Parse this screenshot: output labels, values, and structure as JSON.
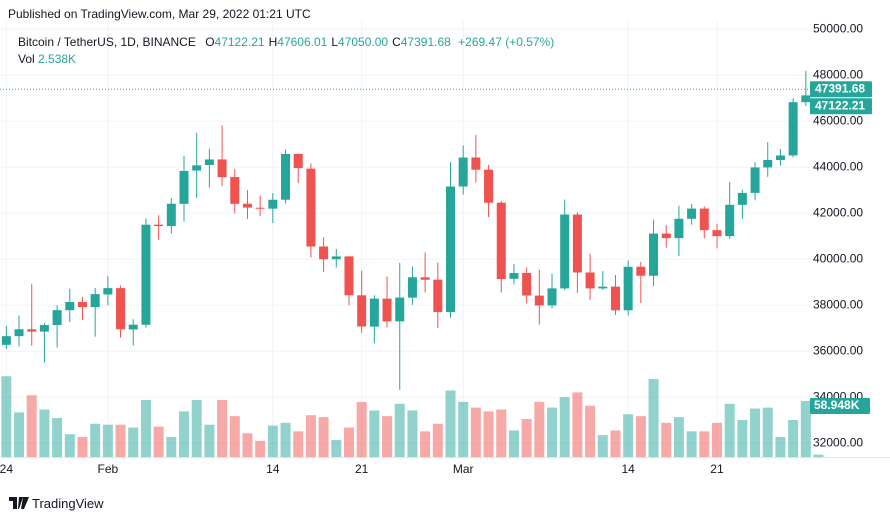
{
  "header": {
    "published": "Published on TradingView.com, Mar 29, 2022 01:21 UTC"
  },
  "legend": {
    "symbol": "Bitcoin / TetherUS, 1D, BINANCE",
    "items": [
      {
        "key": "O",
        "text": "47122.21"
      },
      {
        "key": "H",
        "text": "47606.01"
      },
      {
        "key": "L",
        "text": "47050.00"
      },
      {
        "key": "C",
        "text": "47391.68"
      }
    ],
    "change": "+269.47 (+0.57%)",
    "volume_key": "Vol",
    "volume_text": "2.538K"
  },
  "footer": {
    "brand": "TradingView"
  },
  "chart_data": {
    "type": "candlestick",
    "up_color": "#26a69a",
    "down_color": "#ef5350",
    "grid": true,
    "categories": [
      "Jan 24",
      "Jan 25",
      "Jan 26",
      "Jan 27",
      "Jan 28",
      "Jan 29",
      "Jan 30",
      "Jan 31",
      "Feb 1",
      "Feb 2",
      "Feb 3",
      "Feb 4",
      "Feb 5",
      "Feb 6",
      "Feb 7",
      "Feb 8",
      "Feb 9",
      "Feb 10",
      "Feb 11",
      "Feb 12",
      "Feb 13",
      "Feb 14",
      "Feb 15",
      "Feb 16",
      "Feb 17",
      "Feb 18",
      "Feb 19",
      "Feb 20",
      "Feb 21",
      "Feb 22",
      "Feb 23",
      "Feb 24",
      "Feb 25",
      "Feb 26",
      "Feb 27",
      "Feb 28",
      "Mar 1",
      "Mar 2",
      "Mar 3",
      "Mar 4",
      "Mar 5",
      "Mar 6",
      "Mar 7",
      "Mar 8",
      "Mar 9",
      "Mar 10",
      "Mar 11",
      "Mar 12",
      "Mar 13",
      "Mar 14",
      "Mar 15",
      "Mar 16",
      "Mar 17",
      "Mar 18",
      "Mar 19",
      "Mar 20",
      "Mar 21",
      "Mar 22",
      "Mar 23",
      "Mar 24",
      "Mar 25",
      "Mar 26",
      "Mar 27",
      "Mar 28",
      "Mar 29"
    ],
    "open": [
      36276,
      36655,
      36954,
      36852,
      37138,
      37784,
      38138,
      37917,
      38467,
      38743,
      36944,
      37149,
      41501,
      41441,
      42406,
      43854,
      44096,
      44338,
      43571,
      42412,
      42237,
      42198,
      42586,
      44579,
      43937,
      40553,
      40000,
      40122,
      38430,
      37068,
      38285,
      37297,
      38328,
      39213,
      39111,
      37700,
      43161,
      44422,
      43892,
      42458,
      39148,
      39404,
      38418,
      37989,
      38729,
      41941,
      39422,
      38729,
      38807,
      37778,
      39671,
      39280,
      41115,
      40917,
      41758,
      42201,
      41262,
      41002,
      42364,
      42882,
      43991,
      44313,
      44511,
      46827,
      47122.21
    ],
    "high": [
      37100,
      37550,
      38919,
      37234,
      38000,
      38720,
      38360,
      38744,
      39265,
      38855,
      37387,
      41772,
      41913,
      42656,
      44500,
      45492,
      44800,
      45821,
      43920,
      43000,
      42760,
      42876,
      44770,
      44582,
      44164,
      40959,
      40444,
      40125,
      39494,
      38429,
      39249,
      39843,
      39683,
      40300,
      39855,
      44225,
      44949,
      45400,
      44101,
      42527,
      39794,
      39640,
      39547,
      39362,
      42594,
      42039,
      40236,
      39486,
      39310,
      39947,
      39887,
      41718,
      41478,
      42325,
      42400,
      42296,
      41544,
      43361,
      43025,
      44220,
      45094,
      44792,
      46999,
      48189,
      47606.01
    ],
    "low": [
      36100,
      36200,
      36234,
      35507,
      36155,
      37268,
      37351,
      36632,
      38000,
      36586,
      36250,
      37026,
      40843,
      41116,
      41645,
      42666,
      43117,
      43187,
      42000,
      41748,
      41870,
      41570,
      42427,
      43311,
      40073,
      39450,
      39639,
      38000,
      36800,
      36350,
      37036,
      34322,
      38014,
      38557,
      37000,
      37450,
      42809,
      43334,
      41832,
      38550,
      38900,
      38088,
      37155,
      37867,
      38656,
      38539,
      38224,
      38660,
      37578,
      37555,
      38098,
      38828,
      40500,
      40135,
      41500,
      40911,
      40467,
      40875,
      41751,
      42560,
      43579,
      44071,
      44421,
      46663,
      47050
    ],
    "close": [
      36654,
      36954,
      36852,
      37138,
      37784,
      38138,
      37917,
      38483,
      38743,
      36952,
      37154,
      41500,
      41441,
      42412,
      43841,
      44081,
      44338,
      43565,
      42407,
      42244,
      42197,
      42586,
      44575,
      43961,
      40552,
      40000,
      40121,
      38431,
      37075,
      38287,
      37296,
      38332,
      39214,
      39106,
      37699,
      43160,
      44421,
      43892,
      42454,
      39137,
      39398,
      38420,
      37988,
      38731,
      41941,
      39422,
      38730,
      38807,
      37777,
      39671,
      39280,
      41114,
      40917,
      41757,
      42201,
      41262,
      41002,
      42364,
      42882,
      43991,
      44313,
      44511,
      46827,
      47122.21,
      47391.68
    ],
    "volume": [
      85000,
      47000,
      65000,
      50000,
      41000,
      24000,
      21000,
      35000,
      34000,
      34000,
      31000,
      60000,
      32000,
      21000,
      48000,
      60000,
      34000,
      60000,
      43000,
      25000,
      17000,
      33000,
      36000,
      27000,
      44000,
      42000,
      18000,
      31000,
      58000,
      49000,
      43000,
      56000,
      49000,
      27000,
      35000,
      70000,
      58000,
      52000,
      48000,
      50000,
      28000,
      40000,
      58000,
      52000,
      63000,
      68000,
      54000,
      23000,
      28000,
      45000,
      43000,
      82000,
      36000,
      42000,
      27000,
      27000,
      36000,
      56000,
      39000,
      51000,
      52000,
      21000,
      39000,
      58948,
      2538
    ],
    "volume_value_labels": [
      null,
      null,
      null,
      null,
      null,
      null,
      null,
      null,
      null,
      null,
      null,
      null,
      null,
      null,
      null,
      null,
      null,
      null,
      null,
      null,
      null,
      null,
      null,
      null,
      null,
      null,
      null,
      null,
      null,
      null,
      null,
      null,
      null,
      null,
      null,
      null,
      null,
      null,
      null,
      null,
      null,
      null,
      null,
      null,
      null,
      null,
      null,
      null,
      null,
      null,
      null,
      null,
      null,
      null,
      null,
      null,
      null,
      null,
      null,
      null,
      null,
      null,
      null,
      "58.948K",
      null
    ],
    "ylim": [
      31400,
      50400
    ],
    "yticks": [
      {
        "value": 32000,
        "label": "32000.00"
      },
      {
        "value": 34000,
        "label": "34000.00"
      },
      {
        "value": 36000,
        "label": "36000.00"
      },
      {
        "value": 38000,
        "label": "38000.00"
      },
      {
        "value": 40000,
        "label": "40000.00"
      },
      {
        "value": 42000,
        "label": "42000.00"
      },
      {
        "value": 44000,
        "label": "44000.00"
      },
      {
        "value": 46000,
        "label": "46000.00"
      },
      {
        "value": 48000,
        "label": "48000.00"
      },
      {
        "value": 50000,
        "label": "50000.00"
      }
    ],
    "y2lim": [
      0,
      460000
    ],
    "xticks": [
      {
        "value": "Jan 24",
        "label": "24"
      },
      {
        "value": "Feb 1",
        "label": "Feb"
      },
      {
        "value": "Feb 14",
        "label": "14"
      },
      {
        "value": "Feb 21",
        "label": "21"
      },
      {
        "value": "Mar 1",
        "label": "Mar"
      },
      {
        "value": "Mar 14",
        "label": "14"
      },
      {
        "value": "Mar 21",
        "label": "21"
      }
    ]
  }
}
